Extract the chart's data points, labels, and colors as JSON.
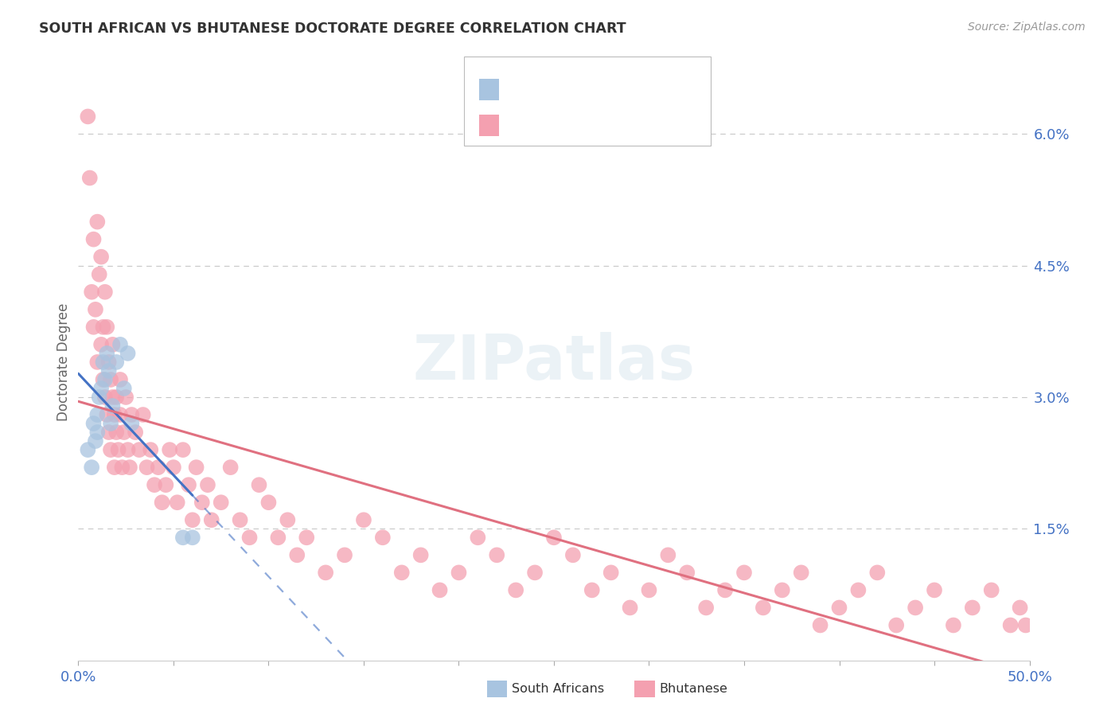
{
  "title": "SOUTH AFRICAN VS BHUTANESE DOCTORATE DEGREE CORRELATION CHART",
  "source": "Source: ZipAtlas.com",
  "ylabel": "Doctorate Degree",
  "yaxis_labels": [
    "1.5%",
    "3.0%",
    "4.5%",
    "6.0%"
  ],
  "yaxis_values": [
    0.015,
    0.03,
    0.045,
    0.06
  ],
  "xlim": [
    0.0,
    0.5
  ],
  "ylim": [
    0.0,
    0.068
  ],
  "color_blue": "#a8c4e0",
  "color_pink": "#f4a0b0",
  "color_blue_text": "#4472c4",
  "color_pink_text": "#e07080",
  "trendline_blue": "#4472c4",
  "trendline_pink": "#e07080",
  "background": "#ffffff",
  "grid_color": "#c8c8c8",
  "sa_x": [
    0.005,
    0.007,
    0.008,
    0.009,
    0.01,
    0.01,
    0.011,
    0.012,
    0.013,
    0.014,
    0.015,
    0.016,
    0.017,
    0.018,
    0.02,
    0.022,
    0.024,
    0.026,
    0.028,
    0.055,
    0.06
  ],
  "sa_y": [
    0.024,
    0.022,
    0.027,
    0.025,
    0.026,
    0.028,
    0.03,
    0.031,
    0.034,
    0.032,
    0.035,
    0.033,
    0.027,
    0.029,
    0.034,
    0.036,
    0.031,
    0.035,
    0.027,
    0.014,
    0.014
  ],
  "bhu_x": [
    0.005,
    0.006,
    0.007,
    0.008,
    0.008,
    0.009,
    0.01,
    0.01,
    0.011,
    0.012,
    0.012,
    0.013,
    0.013,
    0.014,
    0.014,
    0.015,
    0.015,
    0.016,
    0.016,
    0.017,
    0.017,
    0.018,
    0.018,
    0.019,
    0.019,
    0.02,
    0.02,
    0.021,
    0.022,
    0.022,
    0.023,
    0.024,
    0.025,
    0.026,
    0.027,
    0.028,
    0.03,
    0.032,
    0.034,
    0.036,
    0.038,
    0.04,
    0.042,
    0.044,
    0.046,
    0.048,
    0.05,
    0.052,
    0.055,
    0.058,
    0.06,
    0.062,
    0.065,
    0.068,
    0.07,
    0.075,
    0.08,
    0.085,
    0.09,
    0.095,
    0.1,
    0.105,
    0.11,
    0.115,
    0.12,
    0.13,
    0.14,
    0.15,
    0.16,
    0.17,
    0.18,
    0.19,
    0.2,
    0.21,
    0.22,
    0.23,
    0.24,
    0.25,
    0.26,
    0.27,
    0.28,
    0.29,
    0.3,
    0.31,
    0.32,
    0.33,
    0.34,
    0.35,
    0.36,
    0.37,
    0.38,
    0.39,
    0.4,
    0.41,
    0.42,
    0.43,
    0.44,
    0.45,
    0.46,
    0.47,
    0.48,
    0.49,
    0.495,
    0.498
  ],
  "bhu_y": [
    0.062,
    0.055,
    0.042,
    0.038,
    0.048,
    0.04,
    0.034,
    0.05,
    0.044,
    0.036,
    0.046,
    0.038,
    0.032,
    0.042,
    0.03,
    0.028,
    0.038,
    0.034,
    0.026,
    0.032,
    0.024,
    0.03,
    0.036,
    0.028,
    0.022,
    0.03,
    0.026,
    0.024,
    0.028,
    0.032,
    0.022,
    0.026,
    0.03,
    0.024,
    0.022,
    0.028,
    0.026,
    0.024,
    0.028,
    0.022,
    0.024,
    0.02,
    0.022,
    0.018,
    0.02,
    0.024,
    0.022,
    0.018,
    0.024,
    0.02,
    0.016,
    0.022,
    0.018,
    0.02,
    0.016,
    0.018,
    0.022,
    0.016,
    0.014,
    0.02,
    0.018,
    0.014,
    0.016,
    0.012,
    0.014,
    0.01,
    0.012,
    0.016,
    0.014,
    0.01,
    0.012,
    0.008,
    0.01,
    0.014,
    0.012,
    0.008,
    0.01,
    0.014,
    0.012,
    0.008,
    0.01,
    0.006,
    0.008,
    0.012,
    0.01,
    0.006,
    0.008,
    0.01,
    0.006,
    0.008,
    0.01,
    0.004,
    0.006,
    0.008,
    0.01,
    0.004,
    0.006,
    0.008,
    0.004,
    0.006,
    0.008,
    0.004,
    0.006,
    0.004
  ]
}
